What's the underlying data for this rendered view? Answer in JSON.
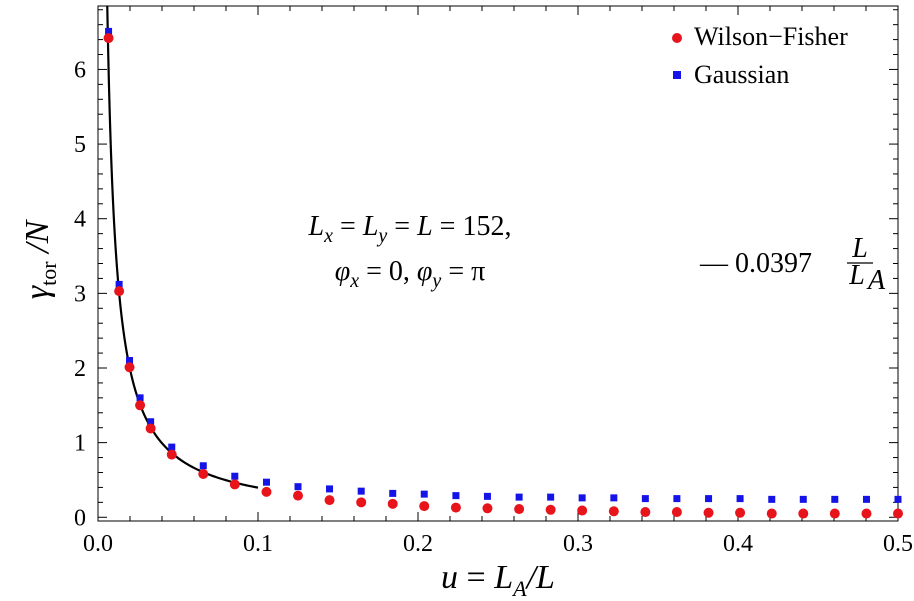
{
  "chart_data": {
    "type": "scatter",
    "xlabel": "u = L_A/L",
    "ylabel": "γ_tor / N",
    "xlim": [
      0,
      0.5
    ],
    "ylim": [
      -0.05,
      6.85
    ],
    "xticks": [
      0.0,
      0.1,
      0.2,
      0.3,
      0.4,
      0.5
    ],
    "xtick_labels": [
      "0.0",
      "0.1",
      "0.2",
      "0.3",
      "0.4",
      "0.5"
    ],
    "yticks": [
      0,
      1,
      2,
      3,
      4,
      5,
      6
    ],
    "ytick_labels": [
      "0",
      "1",
      "2",
      "3",
      "4",
      "5",
      "6"
    ],
    "legend_position": "top-right",
    "series": [
      {
        "name": "Wilson−Fisher",
        "marker": "circle",
        "color": "#e8141b",
        "x": [
          0.0066,
          0.0132,
          0.0197,
          0.0263,
          0.0329,
          0.0461,
          0.0658,
          0.0855,
          0.1053,
          0.125,
          0.1447,
          0.1645,
          0.1842,
          0.2039,
          0.2237,
          0.2434,
          0.2632,
          0.2829,
          0.3026,
          0.3224,
          0.3421,
          0.3618,
          0.3816,
          0.4013,
          0.4211,
          0.4408,
          0.4605,
          0.4803,
          0.5
        ],
        "y": [
          6.42,
          3.03,
          2.01,
          1.5,
          1.19,
          0.84,
          0.58,
          0.44,
          0.34,
          0.29,
          0.23,
          0.2,
          0.18,
          0.15,
          0.13,
          0.12,
          0.11,
          0.1,
          0.09,
          0.08,
          0.07,
          0.07,
          0.06,
          0.06,
          0.05,
          0.05,
          0.05,
          0.05,
          0.05
        ]
      },
      {
        "name": "Gaussian",
        "marker": "square",
        "color": "#1414e8",
        "x": [
          0.0066,
          0.0132,
          0.0197,
          0.0263,
          0.0329,
          0.0461,
          0.0658,
          0.0855,
          0.1053,
          0.125,
          0.1447,
          0.1645,
          0.1842,
          0.2039,
          0.2237,
          0.2434,
          0.2632,
          0.2829,
          0.3026,
          0.3224,
          0.3421,
          0.3618,
          0.3816,
          0.4013,
          0.4211,
          0.4408,
          0.4605,
          0.4803,
          0.5
        ],
        "y": [
          6.51,
          3.12,
          2.1,
          1.6,
          1.28,
          0.94,
          0.69,
          0.55,
          0.47,
          0.41,
          0.38,
          0.35,
          0.32,
          0.31,
          0.29,
          0.28,
          0.27,
          0.27,
          0.26,
          0.26,
          0.25,
          0.25,
          0.25,
          0.25,
          0.24,
          0.24,
          0.24,
          0.24,
          0.24
        ]
      }
    ],
    "fit_curve": {
      "label_prefix": "— 0.0397",
      "frac_num": "L",
      "frac_den": "L",
      "frac_den_sub": "A",
      "coefficient": 0.0397,
      "x_range": [
        0.0058,
        0.1
      ],
      "color": "#000000"
    },
    "annotation": {
      "line1": "L_x = L_y = L = 152,",
      "line2": "φ_x = 0,  φ_y = π"
    }
  }
}
